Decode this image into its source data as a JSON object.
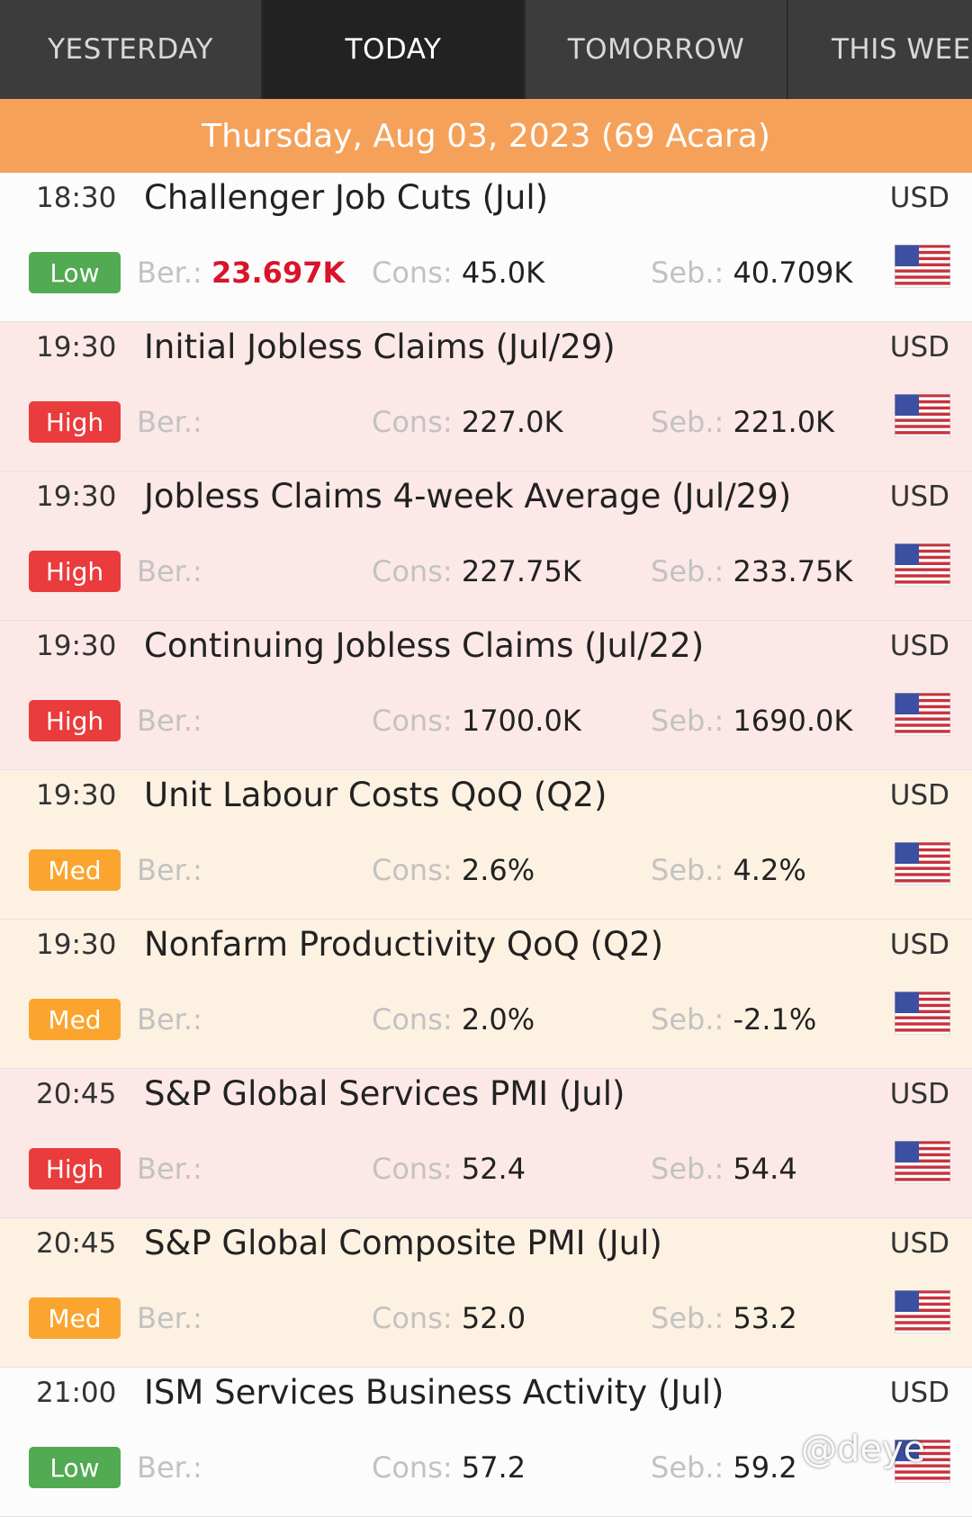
{
  "tabs": [
    {
      "label": "YESTERDAY"
    },
    {
      "label": "TODAY"
    },
    {
      "label": "TOMORROW"
    },
    {
      "label": "THIS WEE"
    }
  ],
  "date_banner": "Thursday, Aug 03, 2023 (69 Acara)",
  "field_labels": {
    "ber": "Ber.:",
    "cons": "Cons:",
    "seb": "Seb.:"
  },
  "events": [
    {
      "time": "18:30",
      "title": "Challenger Job Cuts (Jul)",
      "currency": "USD",
      "impact": "Low",
      "ber": "23.697K",
      "cons": "45.0K",
      "seb": "40.709K"
    },
    {
      "time": "19:30",
      "title": "Initial Jobless Claims (Jul/29)",
      "currency": "USD",
      "impact": "High",
      "ber": "",
      "cons": "227.0K",
      "seb": "221.0K"
    },
    {
      "time": "19:30",
      "title": "Jobless Claims 4-week Average (Jul/29)",
      "currency": "USD",
      "impact": "High",
      "ber": "",
      "cons": "227.75K",
      "seb": "233.75K"
    },
    {
      "time": "19:30",
      "title": "Continuing Jobless Claims (Jul/22)",
      "currency": "USD",
      "impact": "High",
      "ber": "",
      "cons": "1700.0K",
      "seb": "1690.0K"
    },
    {
      "time": "19:30",
      "title": "Unit Labour Costs QoQ (Q2)",
      "currency": "USD",
      "impact": "Med",
      "ber": "",
      "cons": "2.6%",
      "seb": "4.2%"
    },
    {
      "time": "19:30",
      "title": "Nonfarm Productivity QoQ (Q2)",
      "currency": "USD",
      "impact": "Med",
      "ber": "",
      "cons": "2.0%",
      "seb": "-2.1%"
    },
    {
      "time": "20:45",
      "title": "S&P Global Services PMI (Jul)",
      "currency": "USD",
      "impact": "High",
      "ber": "",
      "cons": "52.4",
      "seb": "54.4"
    },
    {
      "time": "20:45",
      "title": "S&P Global Composite PMI (Jul)",
      "currency": "USD",
      "impact": "Med",
      "ber": "",
      "cons": "52.0",
      "seb": "53.2"
    },
    {
      "time": "21:00",
      "title": "ISM Services Business Activity (Jul)",
      "currency": "USD",
      "impact": "Low",
      "ber": "",
      "cons": "57.2",
      "seb": "59.2"
    }
  ],
  "flag_icon": "us-flag-icon",
  "colors": {
    "banner": "#f5a15a",
    "low": "#52aa52",
    "high": "#ea3c3c",
    "med": "#fba52e",
    "actual_red": "#d9142b"
  },
  "watermark": "@deye"
}
